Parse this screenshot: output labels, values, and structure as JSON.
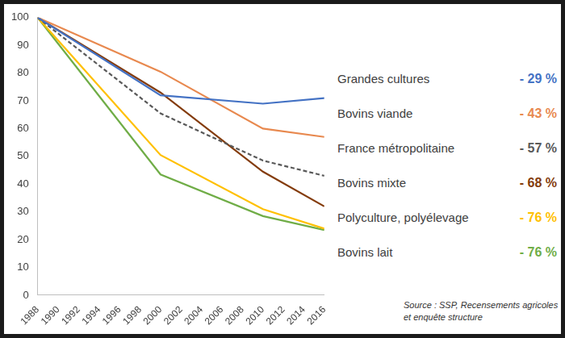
{
  "chart_data": {
    "type": "line",
    "x": [
      1988,
      2000,
      2010,
      2016
    ],
    "xlim": [
      1988,
      2016
    ],
    "xticks": [
      1988,
      1990,
      1992,
      1994,
      1996,
      1998,
      2000,
      2002,
      2004,
      2006,
      2008,
      2010,
      2012,
      2014,
      2016
    ],
    "ylim": [
      0,
      100
    ],
    "yticks": [
      0,
      10,
      20,
      30,
      40,
      50,
      60,
      70,
      80,
      90,
      100
    ],
    "grid": false,
    "legend": "right",
    "series": [
      {
        "name": "Grandes cultures",
        "color": "#4472c4",
        "line_style": "solid",
        "change": "- 29 %",
        "values": [
          100,
          72,
          69,
          71
        ]
      },
      {
        "name": "Bovins viande",
        "color": "#e8894f",
        "line_style": "solid",
        "change": "- 43 %",
        "values": [
          100,
          80.5,
          60,
          57
        ]
      },
      {
        "name": "France métropolitaine",
        "color": "#595959",
        "line_style": "dashed",
        "change": "- 57 %",
        "values": [
          100,
          65.5,
          48.5,
          43
        ]
      },
      {
        "name": "Bovins mixte",
        "color": "#843c0c",
        "line_style": "solid",
        "change": "- 68 %",
        "values": [
          100,
          73,
          44.5,
          32
        ]
      },
      {
        "name": "Polyculture, polyélevage",
        "color": "#ffc000",
        "line_style": "solid",
        "change": "- 76 %",
        "values": [
          100,
          50.5,
          31,
          24
        ]
      },
      {
        "name": "Bovins lait",
        "color": "#70ad47",
        "line_style": "solid",
        "change": "- 76 %",
        "values": [
          100,
          43.5,
          28.5,
          23.5
        ]
      }
    ],
    "source": [
      "Source : SSP, Recensements agricoles",
      "et enquête structure"
    ]
  }
}
